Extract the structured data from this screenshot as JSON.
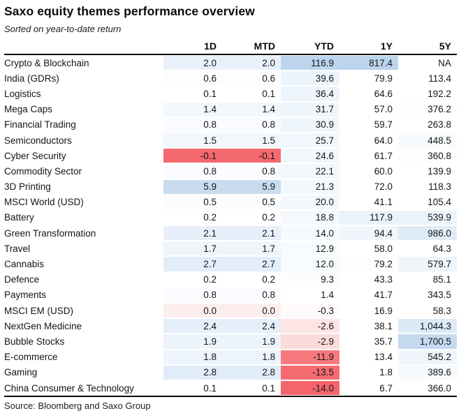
{
  "chart_data": {
    "type": "table",
    "title": "Saxo equity themes performance overview",
    "subtitle": "Sorted on year-to-date return",
    "columns": [
      "1D",
      "MTD",
      "YTD",
      "1Y",
      "5Y"
    ],
    "sort": "year-to-date return, descending",
    "heatmap_colors": {
      "strong_positive": "#bcd4ed",
      "strong_negative": "#f4696e",
      "neutral": "#ffffff"
    },
    "rows": [
      {
        "label": "Crypto & Blockchain",
        "values": [
          "2.0",
          "2.0",
          "116.9",
          "817.4",
          "NA"
        ],
        "bg": [
          "#e8f1fa",
          "#e8f1fa",
          "#bcd4ed",
          "#bcd4ed",
          "#ffffff"
        ]
      },
      {
        "label": "India (GDRs)",
        "values": [
          "0.6",
          "0.6",
          "39.6",
          "79.9",
          "113.4"
        ],
        "bg": [
          "#fcfdfe",
          "#fcfdfe",
          "#ecf4fb",
          "#ffffff",
          "#ffffff"
        ]
      },
      {
        "label": "Logistics",
        "values": [
          "0.1",
          "0.1",
          "36.4",
          "64.6",
          "192.2"
        ],
        "bg": [
          "#ffffff",
          "#ffffff",
          "#edf4fb",
          "#ffffff",
          "#ffffff"
        ]
      },
      {
        "label": "Mega Caps",
        "values": [
          "1.4",
          "1.4",
          "31.7",
          "57.0",
          "376.2"
        ],
        "bg": [
          "#f3f8fc",
          "#f3f8fc",
          "#eff6fb",
          "#ffffff",
          "#fbfdfe"
        ]
      },
      {
        "label": "Financial Trading",
        "values": [
          "0.8",
          "0.8",
          "30.9",
          "59.7",
          "263.8"
        ],
        "bg": [
          "#f9fbfe",
          "#f9fbfe",
          "#eff6fb",
          "#ffffff",
          "#ffffff"
        ]
      },
      {
        "label": "Semiconductors",
        "values": [
          "1.5",
          "1.5",
          "25.7",
          "64.0",
          "448.5"
        ],
        "bg": [
          "#f2f7fc",
          "#f2f7fc",
          "#f1f7fc",
          "#ffffff",
          "#f8fbfd"
        ]
      },
      {
        "label": "Cyber Security",
        "values": [
          "-0.1",
          "-0.1",
          "24.6",
          "61.7",
          "360.8"
        ],
        "bg": [
          "#f4696e",
          "#f4696e",
          "#f2f7fc",
          "#ffffff",
          "#fbfdfe"
        ]
      },
      {
        "label": "Commodity Sector",
        "values": [
          "0.8",
          "0.8",
          "22.1",
          "60.0",
          "139.9"
        ],
        "bg": [
          "#f9fbfe",
          "#f9fbfe",
          "#f3f8fc",
          "#ffffff",
          "#ffffff"
        ]
      },
      {
        "label": "3D Printing",
        "values": [
          "5.9",
          "5.9",
          "21.3",
          "72.0",
          "118.3"
        ],
        "bg": [
          "#c9dcef",
          "#c9dcef",
          "#f3f8fc",
          "#ffffff",
          "#ffffff"
        ]
      },
      {
        "label": "MSCI World (USD)",
        "values": [
          "0.5",
          "0.5",
          "20.0",
          "41.1",
          "105.4"
        ],
        "bg": [
          "#fbfcfe",
          "#fbfcfe",
          "#f4f8fc",
          "#ffffff",
          "#ffffff"
        ]
      },
      {
        "label": "Battery",
        "values": [
          "0.2",
          "0.2",
          "18.8",
          "117.9",
          "539.9"
        ],
        "bg": [
          "#ffffff",
          "#ffffff",
          "#f5f9fd",
          "#eaf2fa",
          "#ebf3fa"
        ]
      },
      {
        "label": "Green Transformation",
        "values": [
          "2.1",
          "2.1",
          "14.0",
          "94.4",
          "986.0"
        ],
        "bg": [
          "#e7f0fa",
          "#e7f0fa",
          "#f7fafd",
          "#f0f6fb",
          "#dfecf8"
        ]
      },
      {
        "label": "Travel",
        "values": [
          "1.7",
          "1.7",
          "12.9",
          "58.0",
          "64.3"
        ],
        "bg": [
          "#eef5fb",
          "#eef5fb",
          "#f8fbfd",
          "#ffffff",
          "#ffffff"
        ]
      },
      {
        "label": "Cannabis",
        "values": [
          "2.7",
          "2.7",
          "12.0",
          "79.2",
          "579.7"
        ],
        "bg": [
          "#e2eef9",
          "#e2eef9",
          "#f8fbfd",
          "#fcfdfe",
          "#eef5fb"
        ]
      },
      {
        "label": "Defence",
        "values": [
          "0.2",
          "0.2",
          "9.3",
          "43.3",
          "85.1"
        ],
        "bg": [
          "#ffffff",
          "#ffffff",
          "#fafcfe",
          "#ffffff",
          "#ffffff"
        ]
      },
      {
        "label": "Payments",
        "values": [
          "0.8",
          "0.8",
          "1.4",
          "41.7",
          "343.5"
        ],
        "bg": [
          "#f9fbfe",
          "#f9fbfe",
          "#ffffff",
          "#ffffff",
          "#ffffff"
        ]
      },
      {
        "label": "MSCI EM (USD)",
        "values": [
          "0.0",
          "0.0",
          "-0.3",
          "16.9",
          "58.3"
        ],
        "bg": [
          "#fdeeee",
          "#fdeeee",
          "#fefafa",
          "#ffffff",
          "#ffffff"
        ]
      },
      {
        "label": "NextGen Medicine",
        "values": [
          "2.4",
          "2.4",
          "-2.6",
          "38.1",
          "1,044.3"
        ],
        "bg": [
          "#e5effa",
          "#e5effa",
          "#fce5e4",
          "#ffffff",
          "#dceaf7"
        ]
      },
      {
        "label": "Bubble Stocks",
        "values": [
          "1.9",
          "1.9",
          "-2.9",
          "35.7",
          "1,700.5"
        ],
        "bg": [
          "#ecf4fb",
          "#ecf4fb",
          "#fbdbda",
          "#ffffff",
          "#c5d9ef"
        ]
      },
      {
        "label": "E-commerce",
        "values": [
          "1.8",
          "1.8",
          "-11.9",
          "13.4",
          "545.2"
        ],
        "bg": [
          "#edf4fb",
          "#edf4fb",
          "#f7797d",
          "#ffffff",
          "#eff5fb"
        ]
      },
      {
        "label": "Gaming",
        "values": [
          "2.8",
          "2.8",
          "-13.5",
          "1.8",
          "389.6"
        ],
        "bg": [
          "#e0ecf9",
          "#e0ecf9",
          "#f56b70",
          "#ffffff",
          "#f6fafd"
        ]
      },
      {
        "label": "China Consumer & Technology",
        "values": [
          "0.1",
          "0.1",
          "-14.0",
          "6.7",
          "366.0"
        ],
        "bg": [
          "#ffffff",
          "#ffffff",
          "#f4656b",
          "#ffffff",
          "#ffffff"
        ]
      }
    ],
    "source": "Source: Bloomberg and Saxo Group"
  }
}
